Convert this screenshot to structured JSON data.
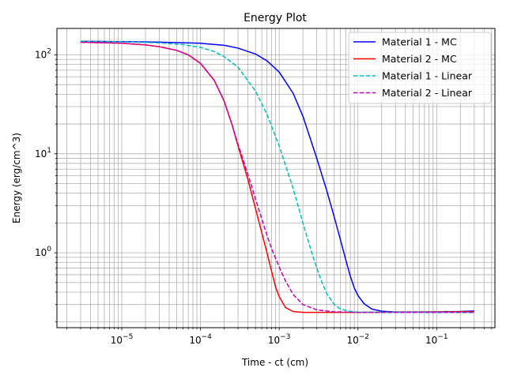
{
  "chart_data": {
    "type": "line",
    "title": "Energy Plot",
    "xlabel": "Time - ct (cm)",
    "ylabel": "Energy (erg/cm^3)",
    "xscale": "log",
    "yscale": "log",
    "xlim": [
      1.5e-06,
      0.55
    ],
    "ylim": [
      0.175,
      185
    ],
    "grid": true,
    "legend_position": "top-right",
    "x_ticks": [
      {
        "value": 1e-05,
        "base": "10",
        "exp": "−5"
      },
      {
        "value": 0.0001,
        "base": "10",
        "exp": "−4"
      },
      {
        "value": 0.001,
        "base": "10",
        "exp": "−3"
      },
      {
        "value": 0.01,
        "base": "10",
        "exp": "−2"
      },
      {
        "value": 0.1,
        "base": "10",
        "exp": "−1"
      }
    ],
    "y_ticks": [
      {
        "value": 1,
        "base": "10",
        "exp": "0"
      },
      {
        "value": 10,
        "base": "10",
        "exp": "1"
      },
      {
        "value": 100,
        "base": "10",
        "exp": "2"
      }
    ],
    "series": [
      {
        "name": "Material 1 - MC",
        "color": "#0000ff",
        "dash": "solid",
        "points": [
          [
            3e-06,
            137
          ],
          [
            1e-05,
            136
          ],
          [
            3e-05,
            134.5
          ],
          [
            0.0001,
            131
          ],
          [
            0.0002,
            125
          ],
          [
            0.0003,
            117
          ],
          [
            0.0005,
            102
          ],
          [
            0.0007,
            87
          ],
          [
            0.001,
            67
          ],
          [
            0.0015,
            41
          ],
          [
            0.002,
            24
          ],
          [
            0.003,
            9
          ],
          [
            0.004,
            4.3
          ],
          [
            0.005,
            2.3
          ],
          [
            0.006,
            1.35
          ],
          [
            0.007,
            0.85
          ],
          [
            0.008,
            0.58
          ],
          [
            0.009,
            0.44
          ],
          [
            0.01,
            0.37
          ],
          [
            0.012,
            0.305
          ],
          [
            0.015,
            0.27
          ],
          [
            0.02,
            0.257
          ],
          [
            0.03,
            0.252
          ],
          [
            0.05,
            0.252
          ],
          [
            0.1,
            0.253
          ],
          [
            0.2,
            0.255
          ],
          [
            0.3,
            0.258
          ]
        ]
      },
      {
        "name": "Material 2 - MC",
        "color": "#ff0000",
        "dash": "solid",
        "points": [
          [
            3e-06,
            134
          ],
          [
            5e-06,
            133
          ],
          [
            1e-05,
            131
          ],
          [
            2e-05,
            126
          ],
          [
            3e-05,
            121
          ],
          [
            5e-05,
            111
          ],
          [
            7e-05,
            100
          ],
          [
            0.0001,
            82
          ],
          [
            0.00015,
            55
          ],
          [
            0.0002,
            34
          ],
          [
            0.00025,
            20
          ],
          [
            0.0003,
            12
          ],
          [
            0.0004,
            5.5
          ],
          [
            0.0005,
            2.8
          ],
          [
            0.0006,
            1.6
          ],
          [
            0.0007,
            1.0
          ],
          [
            0.0008,
            0.65
          ],
          [
            0.0009,
            0.45
          ],
          [
            0.001,
            0.36
          ],
          [
            0.0012,
            0.28
          ],
          [
            0.0015,
            0.255
          ],
          [
            0.002,
            0.25
          ],
          [
            0.005,
            0.25
          ],
          [
            0.01,
            0.25
          ],
          [
            0.1,
            0.252
          ],
          [
            0.3,
            0.254
          ]
        ]
      },
      {
        "name": "Material 1 - Linear",
        "color": "#00bfbf",
        "dash": "dashed",
        "points": [
          [
            3e-06,
            137
          ],
          [
            1e-05,
            135.5
          ],
          [
            3e-05,
            132
          ],
          [
            6e-05,
            127
          ],
          [
            0.0001,
            119
          ],
          [
            0.00015,
            108
          ],
          [
            0.0002,
            96
          ],
          [
            0.0003,
            75
          ],
          [
            0.0005,
            43
          ],
          [
            0.0007,
            25
          ],
          [
            0.001,
            12
          ],
          [
            0.0015,
            4.5
          ],
          [
            0.002,
            2.0
          ],
          [
            0.0025,
            1.1
          ],
          [
            0.003,
            0.7
          ],
          [
            0.0035,
            0.5
          ],
          [
            0.004,
            0.39
          ],
          [
            0.005,
            0.3
          ],
          [
            0.006,
            0.27
          ],
          [
            0.008,
            0.255
          ],
          [
            0.01,
            0.251
          ],
          [
            0.1,
            0.25
          ],
          [
            0.3,
            0.25
          ]
        ]
      },
      {
        "name": "Material 2 - Linear",
        "color": "#bf00bf",
        "dash": "dashed",
        "points": [
          [
            3e-06,
            134
          ],
          [
            5e-06,
            133
          ],
          [
            1e-05,
            131
          ],
          [
            2e-05,
            126
          ],
          [
            3e-05,
            121
          ],
          [
            5e-05,
            111
          ],
          [
            7e-05,
            100
          ],
          [
            0.0001,
            82
          ],
          [
            0.00015,
            55
          ],
          [
            0.0002,
            34
          ],
          [
            0.00025,
            20
          ],
          [
            0.0003,
            12.5
          ],
          [
            0.0004,
            6.2
          ],
          [
            0.0005,
            3.5
          ],
          [
            0.0006,
            2.2
          ],
          [
            0.0007,
            1.5
          ],
          [
            0.0008,
            1.1
          ],
          [
            0.001,
            0.72
          ],
          [
            0.0012,
            0.52
          ],
          [
            0.0015,
            0.38
          ],
          [
            0.002,
            0.3
          ],
          [
            0.003,
            0.265
          ],
          [
            0.005,
            0.253
          ],
          [
            0.01,
            0.25
          ],
          [
            0.1,
            0.25
          ],
          [
            0.3,
            0.25
          ]
        ]
      }
    ]
  }
}
